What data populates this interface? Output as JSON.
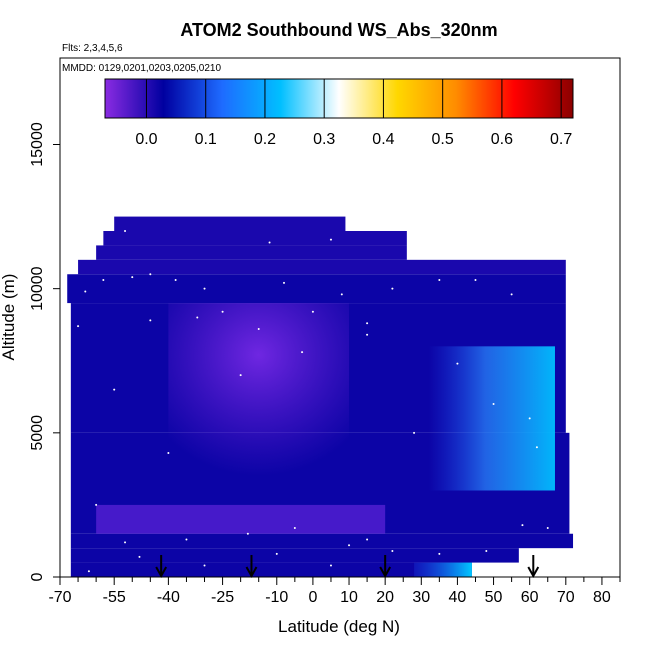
{
  "chart_data": {
    "type": "heatmap",
    "title": "ATOM2 Southbound WS_Abs_320nm",
    "flights_note": "Flts: 2,3,4,5,6",
    "dates_note": "MMDD: 0129,0201,0203,0205,0210",
    "xlabel": "Latitude (deg N)",
    "ylabel": "Altitude (m)",
    "xlim": [
      -70,
      85
    ],
    "ylim": [
      0,
      18000
    ],
    "x_tick_labels": [
      -70,
      -55,
      -40,
      -25,
      -10,
      0,
      10,
      20,
      30,
      40,
      50,
      60,
      70,
      80
    ],
    "x_minor_ticks": [
      -65,
      -60,
      -50,
      -45,
      -35,
      -30,
      -20,
      -15,
      -5,
      5,
      15,
      25,
      35,
      45,
      55,
      65,
      75,
      85
    ],
    "y_ticks": [
      0,
      5000,
      10000,
      15000
    ],
    "colorbar": {
      "min": -0.07,
      "max": 0.72,
      "ticks": [
        0.0,
        0.1,
        0.2,
        0.3,
        0.4,
        0.5,
        0.6,
        0.7
      ],
      "tick_labels": [
        "0.0",
        "0.1",
        "0.2",
        "0.3",
        "0.4",
        "0.5",
        "0.6",
        "0.7"
      ],
      "colors": [
        "#8a2be2",
        "#0000a0",
        "#1e6bff",
        "#00bfff",
        "#ffffff",
        "#ffd700",
        "#ff8c00",
        "#ff0000",
        "#8b0000"
      ]
    },
    "cross_section": [
      {
        "alt": [
          0,
          500
        ],
        "lat": [
          -67,
          44
        ],
        "value": 0.02
      },
      {
        "alt": [
          500,
          1000
        ],
        "lat": [
          -67,
          57
        ],
        "value": 0.02
      },
      {
        "alt": [
          1000,
          1500
        ],
        "lat": [
          -67,
          72
        ],
        "value": 0.02
      },
      {
        "alt": [
          1500,
          5000
        ],
        "lat": [
          -67,
          71
        ],
        "value": 0.02
      },
      {
        "alt": [
          5000,
          9500
        ],
        "lat": [
          -67,
          70
        ],
        "value": 0.02
      },
      {
        "alt": [
          9500,
          10500
        ],
        "lat": [
          -68,
          70
        ],
        "value": 0.02
      },
      {
        "alt": [
          10500,
          11000
        ],
        "lat": [
          -65,
          70
        ],
        "value": 0.01
      },
      {
        "alt": [
          11000,
          11500
        ],
        "lat": [
          -60,
          26
        ],
        "value": 0.01
      },
      {
        "alt": [
          11500,
          12000
        ],
        "lat": [
          -58,
          26
        ],
        "value": 0.01
      },
      {
        "alt": [
          12000,
          12500
        ],
        "lat": [
          -55,
          9
        ],
        "value": 0.01
      }
    ],
    "features": [
      {
        "desc": "light-blue plume",
        "lat": [
          32,
          67
        ],
        "alt": [
          3000,
          8000
        ],
        "value": 0.18
      },
      {
        "desc": "light-blue layer near surface",
        "lat": [
          28,
          44
        ],
        "alt": [
          0,
          500
        ],
        "value": 0.2
      },
      {
        "desc": "purple low-value wedge",
        "lat": [
          -40,
          10
        ],
        "alt": [
          3500,
          9500
        ],
        "value": -0.04
      },
      {
        "desc": "purple low-value band",
        "lat": [
          -60,
          20
        ],
        "alt": [
          1500,
          2500
        ],
        "value": -0.04
      }
    ],
    "flight_markers_lat": [
      -42,
      -17,
      20,
      61
    ]
  }
}
